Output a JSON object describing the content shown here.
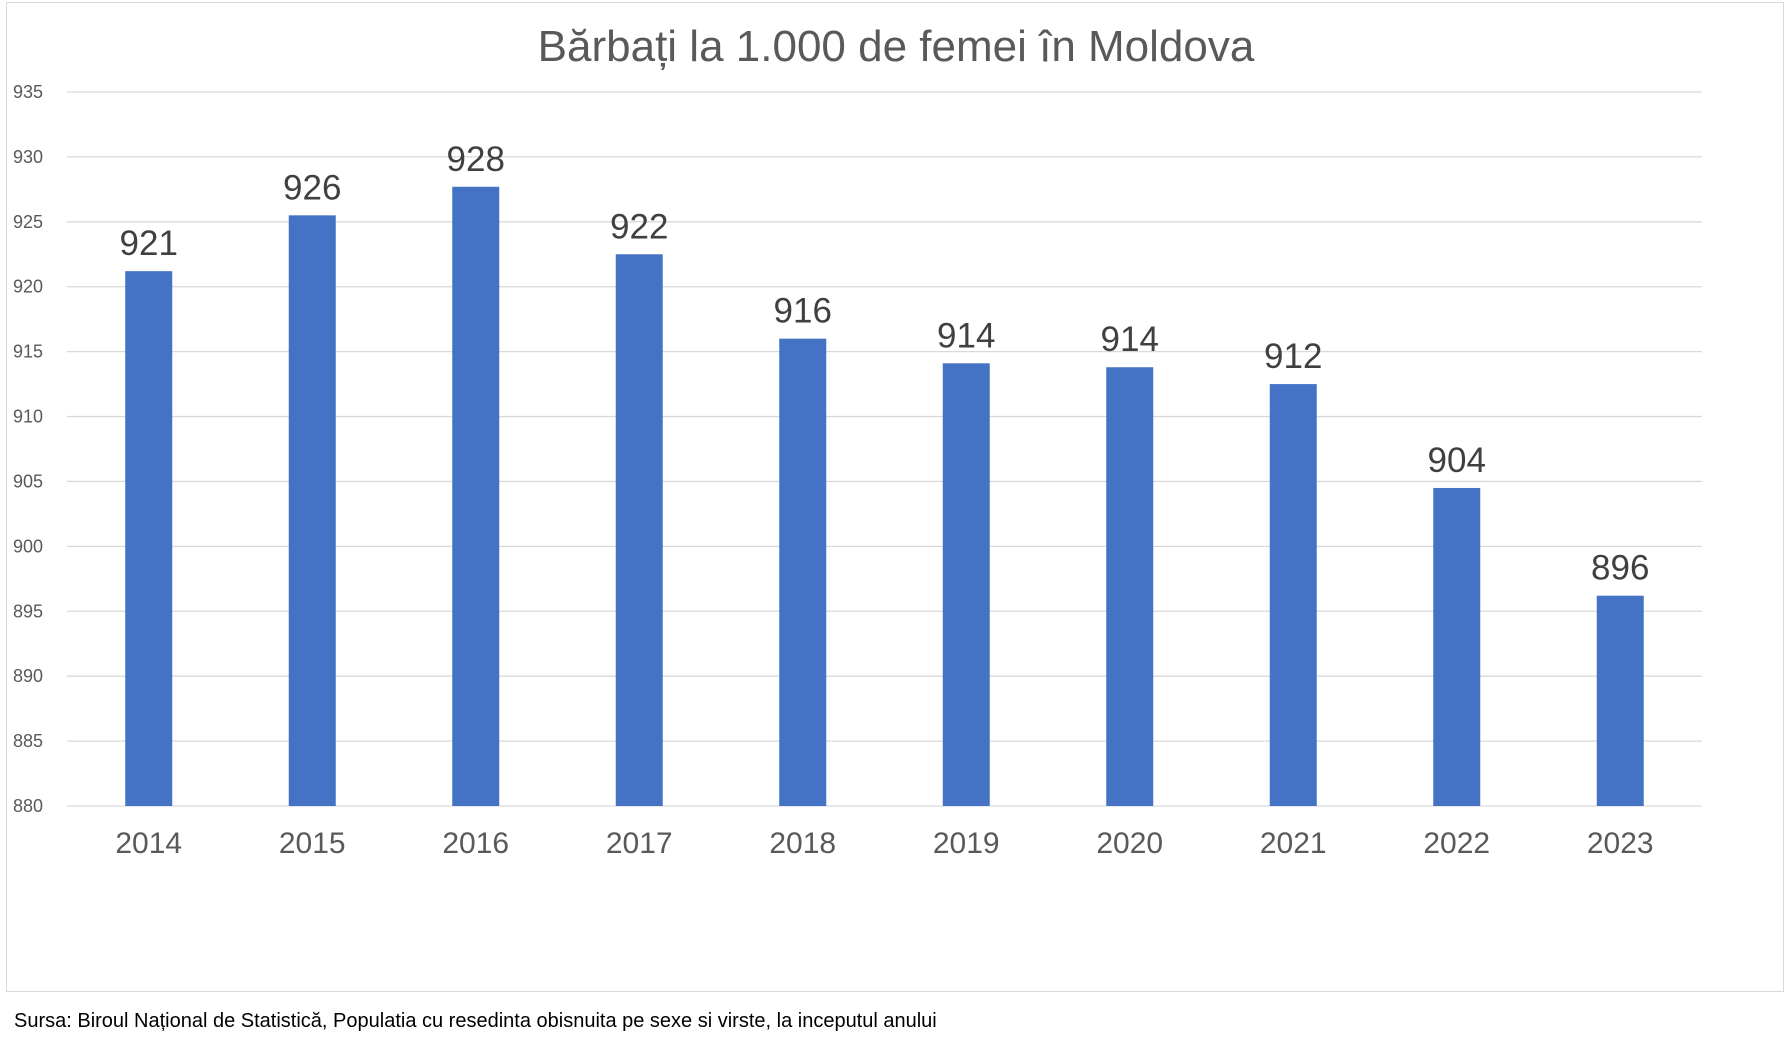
{
  "chart_data": {
    "type": "bar",
    "title": "Bărbați la 1.000 de femei în Moldova",
    "xlabel": "",
    "ylabel": "",
    "categories": [
      "2014",
      "2015",
      "2016",
      "2017",
      "2018",
      "2019",
      "2020",
      "2021",
      "2022",
      "2023"
    ],
    "values": [
      921.2,
      925.5,
      927.7,
      922.5,
      916,
      914.1,
      913.8,
      912.5,
      904.5,
      896.2
    ],
    "data_labels": [
      "921",
      "926",
      "928",
      "922",
      "916",
      "914",
      "914",
      "912",
      "904",
      "896"
    ],
    "ylim": [
      880,
      935
    ],
    "y_ticks": [
      880,
      885,
      890,
      895,
      900,
      905,
      910,
      915,
      920,
      925,
      930,
      935
    ],
    "grid": true,
    "legend": "none",
    "bar_color": "#4472c4"
  },
  "source_note": "Sursa: Biroul Național de Statistică, Populatia cu resedinta obisnuita pe sexe si virste, la inceputul anului"
}
